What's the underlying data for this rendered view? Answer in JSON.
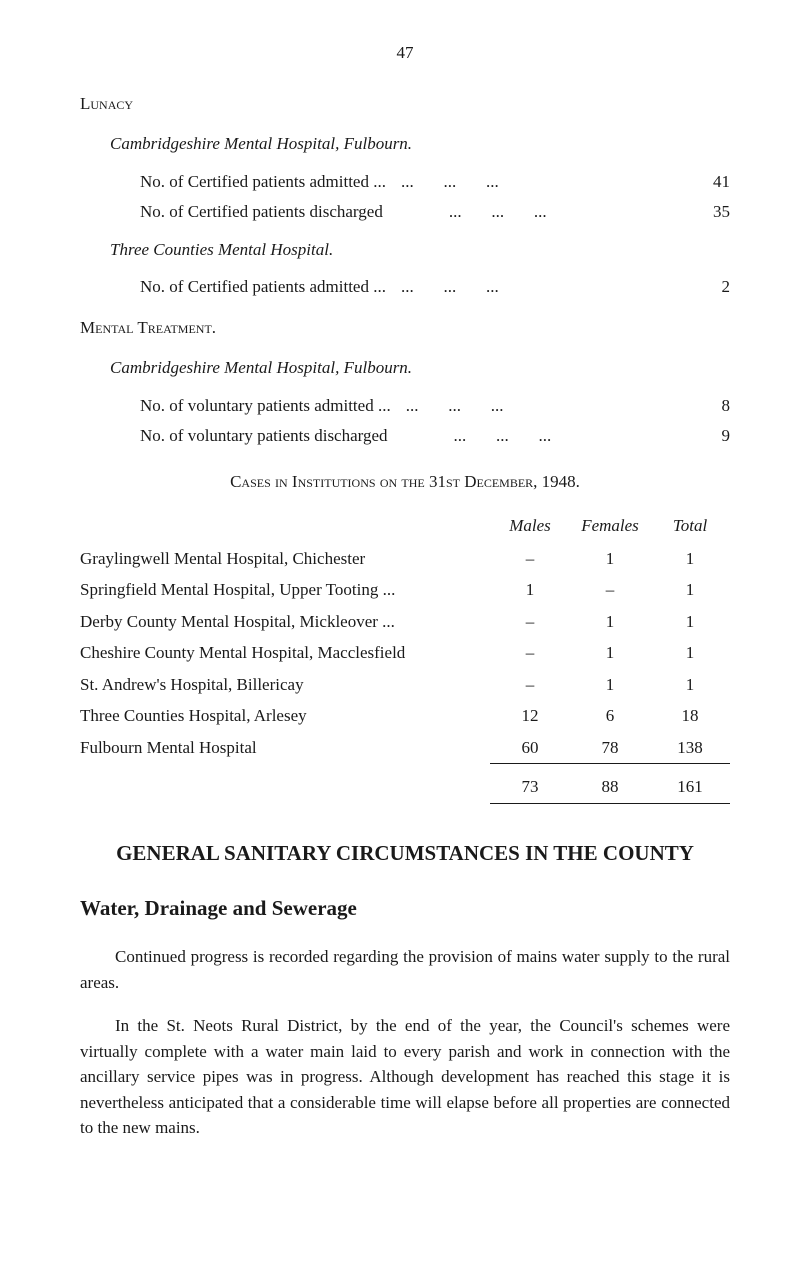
{
  "page_number": "47",
  "lunacy_heading": "Lunacy",
  "cambridge_hospital_heading": "Cambridgeshire Mental Hospital, Fulbourn.",
  "lunacy_stats": [
    {
      "label": "No. of Certified patients admitted ...",
      "value": "41"
    },
    {
      "label": "No. of Certified patients discharged",
      "value": "35"
    }
  ],
  "three_counties_heading": "Three Counties Mental Hospital.",
  "three_counties_stats": [
    {
      "label": "No. of Certified patients admitted ...",
      "value": "2"
    }
  ],
  "mental_treatment_heading": "Mental Treatment.",
  "cambridge_hospital_heading2": "Cambridgeshire Mental Hospital, Fulbourn.",
  "treatment_stats": [
    {
      "label": "No. of voluntary patients admitted ...",
      "value": "8"
    },
    {
      "label": "No. of voluntary patients discharged",
      "value": "9"
    }
  ],
  "cases_heading": "Cases in Institutions on the 31st December, 1948.",
  "cases_table": {
    "headers": [
      "",
      "Males",
      "Females",
      "Total"
    ],
    "rows": [
      {
        "name": "Graylingwell Mental Hospital, Chichester",
        "males": "–",
        "females": "1",
        "total": "1"
      },
      {
        "name": "Springfield Mental Hospital, Upper Tooting ...",
        "males": "1",
        "females": "–",
        "total": "1"
      },
      {
        "name": "Derby County Mental Hospital, Mickleover ...",
        "males": "–",
        "females": "1",
        "total": "1"
      },
      {
        "name": "Cheshire County Mental Hospital, Macclesfield",
        "males": "–",
        "females": "1",
        "total": "1"
      },
      {
        "name": "St. Andrew's Hospital, Billericay",
        "males": "–",
        "females": "1",
        "total": "1"
      },
      {
        "name": "Three Counties Hospital, Arlesey",
        "males": "12",
        "females": "6",
        "total": "18"
      },
      {
        "name": "Fulbourn Mental Hospital",
        "males": "60",
        "females": "78",
        "total": "138"
      }
    ],
    "totals": {
      "males": "73",
      "females": "88",
      "total": "161"
    }
  },
  "main_heading": "GENERAL SANITARY CIRCUMSTANCES IN THE COUNTY",
  "sub_heading": "Water, Drainage and Sewerage",
  "paragraphs": [
    "Continued progress is recorded regarding the provision of mains water supply to the rural areas.",
    "In the St. Neots Rural District, by the end of the year, the Council's schemes were virtually complete with a water main laid to every parish and work in connection with the ancillary service pipes was in progress. Although development has reached this stage it is nevertheless anticipated that a considerable time will elapse before all properties are connected to the new mains."
  ]
}
